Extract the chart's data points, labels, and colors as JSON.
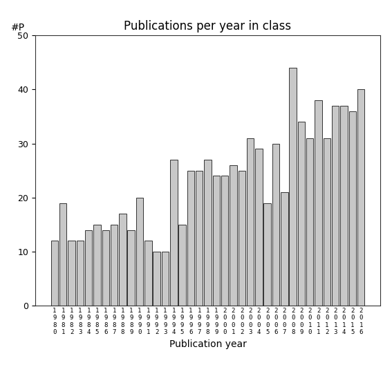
{
  "title": "Publications per year in class",
  "xlabel": "Publication year",
  "ylabel": "#P",
  "years": [
    "1980",
    "1981",
    "1982",
    "1983",
    "1984",
    "1985",
    "1986",
    "1987",
    "1988",
    "1989",
    "1990",
    "1991",
    "1992",
    "1993",
    "1994",
    "1995",
    "1996",
    "1997",
    "1998",
    "1999",
    "2000",
    "2001",
    "2002",
    "2003",
    "2004",
    "2005",
    "2006",
    "2007",
    "2008",
    "2009",
    "2010",
    "2011",
    "2012",
    "2013",
    "2014",
    "2015",
    "2016"
  ],
  "values": [
    12,
    19,
    12,
    12,
    14,
    15,
    14,
    15,
    17,
    14,
    20,
    12,
    10,
    10,
    27,
    15,
    25,
    25,
    27,
    24,
    24,
    26,
    25,
    31,
    29,
    19,
    30,
    21,
    44,
    34,
    31,
    38,
    31,
    37,
    37,
    36,
    40
  ],
  "bar_color": "#c8c8c8",
  "bar_edgecolor": "#333333",
  "ylim": [
    0,
    50
  ],
  "yticks": [
    0,
    10,
    20,
    30,
    40,
    50
  ],
  "background_color": "#ffffff",
  "title_fontsize": 12,
  "label_fontsize": 10,
  "tick_fontsize": 9,
  "xtick_fontsize": 6.5
}
